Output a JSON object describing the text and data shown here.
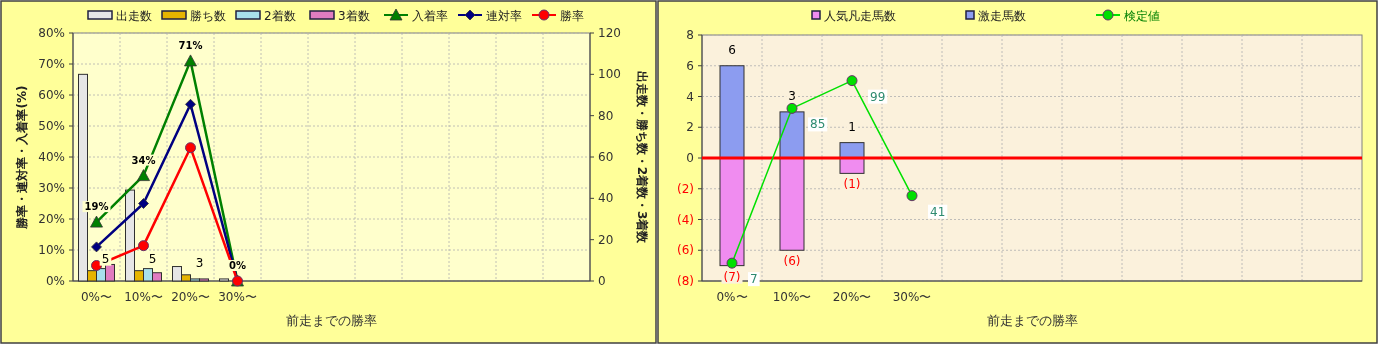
{
  "chart_data": [
    {
      "type": "bar",
      "categories": [
        "0%〜",
        "10%〜",
        "20%〜",
        "30%〜",
        null,
        null,
        null,
        null,
        null,
        null,
        null
      ],
      "xlabel": "前走までの勝率",
      "ylabel": "勝率・連対率・入着率(%)",
      "y2label": "出走数・勝ち数・2着数・3着数",
      "ylim": [
        0,
        80
      ],
      "yticks": [
        {
          "value": 0,
          "label": "0%"
        },
        {
          "value": 10,
          "label": "10%"
        },
        {
          "value": 20,
          "label": "20%"
        },
        {
          "value": 30,
          "label": "30%"
        },
        {
          "value": 40,
          "label": "40%"
        },
        {
          "value": 50,
          "label": "50%"
        },
        {
          "value": 60,
          "label": "60%"
        },
        {
          "value": 70,
          "label": "70%"
        },
        {
          "value": 80,
          "label": "80%"
        }
      ],
      "y2lim": [
        0,
        120
      ],
      "y2ticks": [
        0,
        20,
        40,
        60,
        80,
        100,
        120
      ],
      "grid": true,
      "legend": "top",
      "series": [
        {
          "name": "出走数",
          "axis": "y2",
          "color": "#e6e6e6",
          "values": [
            100,
            44,
            7,
            1,
            null,
            null,
            null,
            null,
            null,
            null,
            null
          ]
        },
        {
          "name": "勝ち数",
          "axis": "y2",
          "color": "#e6b400",
          "values": [
            5,
            5,
            3,
            0,
            null,
            null,
            null,
            null,
            null,
            null,
            null
          ],
          "value_labels": [
            "5",
            "5",
            "3",
            null,
            null,
            null,
            null,
            null,
            null,
            null,
            null
          ]
        },
        {
          "name": "2着数",
          "axis": "y2",
          "color": "#a8e0ec",
          "values": [
            6,
            6,
            1,
            0,
            null,
            null,
            null,
            null,
            null,
            null,
            null
          ]
        },
        {
          "name": "3着数",
          "axis": "y2",
          "color": "#e07cc0",
          "values": [
            8,
            4,
            1,
            0,
            null,
            null,
            null,
            null,
            null,
            null,
            null
          ]
        },
        {
          "name": "入着率",
          "type": "line",
          "marker": "triangle",
          "color": "#008000",
          "values": [
            19,
            34,
            71,
            0,
            null,
            null,
            null,
            null,
            null,
            null,
            null
          ],
          "value_labels": [
            "19%",
            "34%",
            "71%",
            "0%",
            null,
            null,
            null,
            null,
            null,
            null,
            null
          ]
        },
        {
          "name": "連対率",
          "type": "line",
          "marker": "diamond",
          "color": "#000080",
          "values": [
            11,
            25,
            57,
            0,
            null,
            null,
            null,
            null,
            null,
            null,
            null
          ]
        },
        {
          "name": "勝率",
          "type": "line",
          "marker": "circle",
          "color": "#ff0000",
          "values": [
            5,
            11.4,
            43,
            0,
            null,
            null,
            null,
            null,
            null,
            null,
            null
          ]
        }
      ]
    },
    {
      "type": "bar",
      "stacked": true,
      "categories": [
        "0%〜",
        "10%〜",
        "20%〜",
        "30%〜",
        null,
        null,
        null,
        null,
        null,
        null,
        null
      ],
      "xlabel": "前走までの勝率",
      "ylim": [
        -8,
        8
      ],
      "yticks": [
        {
          "value": -8,
          "label": "(8)"
        },
        {
          "value": -6,
          "label": "(6)"
        },
        {
          "value": -4,
          "label": "(4)"
        },
        {
          "value": -2,
          "label": "(2)"
        },
        0,
        2,
        4,
        6,
        8
      ],
      "y2lim": [
        -2,
        122
      ],
      "grid": true,
      "legend": "top",
      "ref_lines": [
        {
          "axis": "y",
          "value": 0,
          "color": "#ff0000"
        }
      ],
      "series": [
        {
          "name": "人気凡走馬数",
          "color": "#f08cf0",
          "values": [
            -7,
            -6,
            -1,
            0,
            null,
            null,
            null,
            null,
            null,
            null,
            null
          ],
          "value_labels": [
            "(7)",
            "(6)",
            "(1)",
            null,
            null,
            null,
            null,
            null,
            null,
            null,
            null
          ]
        },
        {
          "name": "激走馬数",
          "color": "#8c9cf0",
          "values": [
            6,
            3,
            1,
            0,
            null,
            null,
            null,
            null,
            null,
            null,
            null
          ],
          "value_labels": [
            "6",
            "3",
            "1",
            null,
            null,
            null,
            null,
            null,
            null,
            null,
            null
          ]
        },
        {
          "name": "検定値",
          "type": "line",
          "axis": "y2",
          "marker": "circle",
          "color": "#00e000",
          "values": [
            7,
            85,
            99,
            41,
            null,
            null,
            null,
            null,
            null,
            null,
            null
          ],
          "value_labels": [
            "7",
            "85",
            "99",
            "41",
            null,
            null,
            null,
            null,
            null,
            null,
            null
          ]
        }
      ]
    }
  ]
}
